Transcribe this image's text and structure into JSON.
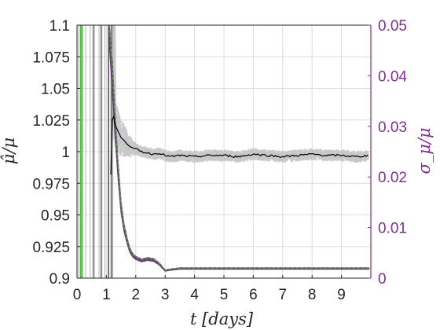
{
  "chart_data": {
    "type": "line",
    "xlabel": "t [days]",
    "ylabel_left": "μ̂/μ",
    "ylabel_right": "σ_μ/μ",
    "xlim": [
      0,
      10
    ],
    "ylim_left": [
      0.9,
      1.1
    ],
    "ylim_right": [
      0,
      0.05
    ],
    "x_ticks": [
      "0",
      "1",
      "2",
      "3",
      "4",
      "5",
      "6",
      "7",
      "8",
      "9"
    ],
    "x_tick_values": [
      0,
      1,
      2,
      3,
      4,
      5,
      6,
      7,
      8,
      9
    ],
    "y_left_ticks": [
      "1.1",
      "1.075",
      "1.05",
      "1.025",
      "1",
      "0.975",
      "0.95",
      "0.925",
      "0.9"
    ],
    "y_left_tick_values": [
      1.1,
      1.075,
      1.05,
      1.025,
      1.0,
      0.975,
      0.95,
      0.925,
      0.9
    ],
    "y_right_ticks": [
      "0.05",
      "0.04",
      "0.03",
      "0.02",
      "0.01",
      "0"
    ],
    "y_right_tick_values": [
      0.05,
      0.04,
      0.03,
      0.02,
      0.01,
      0.0
    ],
    "grid": true,
    "colors": {
      "mean_estimate": "#000000",
      "ensemble": "#c8c8c8",
      "std_ensemble": "#7e2f8e",
      "std_green": "#4dbe3c",
      "right_axis": "#7e2f8e",
      "left_axis": "#262626"
    },
    "series": [
      {
        "axis": "left",
        "x": [
          1.15,
          1.2,
          1.25,
          1.3,
          1.4,
          1.5,
          1.6,
          1.7,
          1.8,
          2.0,
          2.2,
          2.4,
          2.6,
          2.8,
          3.0,
          3.2,
          3.5,
          4.0,
          4.5,
          5.0,
          5.5,
          6.0,
          6.5,
          7.0,
          7.5,
          8.0,
          8.5,
          9.0,
          9.5,
          9.95
        ],
        "y": [
          0.982,
          1.025,
          1.028,
          1.021,
          1.016,
          1.011,
          1.009,
          1.006,
          1.004,
          1.002,
          1.0,
          0.999,
          0.998,
          0.999,
          0.997,
          0.996,
          0.997,
          0.996,
          0.997,
          0.997,
          0.996,
          0.998,
          0.997,
          0.996,
          0.997,
          0.998,
          0.997,
          0.997,
          0.996,
          0.997
        ]
      },
      {
        "axis": "right",
        "x": [
          1.1,
          1.2,
          1.3,
          1.4,
          1.5,
          1.6,
          1.7,
          1.8,
          1.9,
          2.0,
          2.2,
          2.4,
          2.6,
          2.8,
          3.0,
          3.2,
          3.5,
          4.0,
          5.0,
          6.0,
          7.0,
          8.0,
          9.0,
          9.95
        ],
        "y": [
          0.05,
          0.04,
          0.03,
          0.021,
          0.014,
          0.01,
          0.0075,
          0.0055,
          0.0045,
          0.004,
          0.0035,
          0.0038,
          0.0036,
          0.0028,
          0.0015,
          0.0017,
          0.0019,
          0.0019,
          0.0019,
          0.0019,
          0.0019,
          0.0019,
          0.0019,
          0.0019
        ]
      }
    ]
  }
}
